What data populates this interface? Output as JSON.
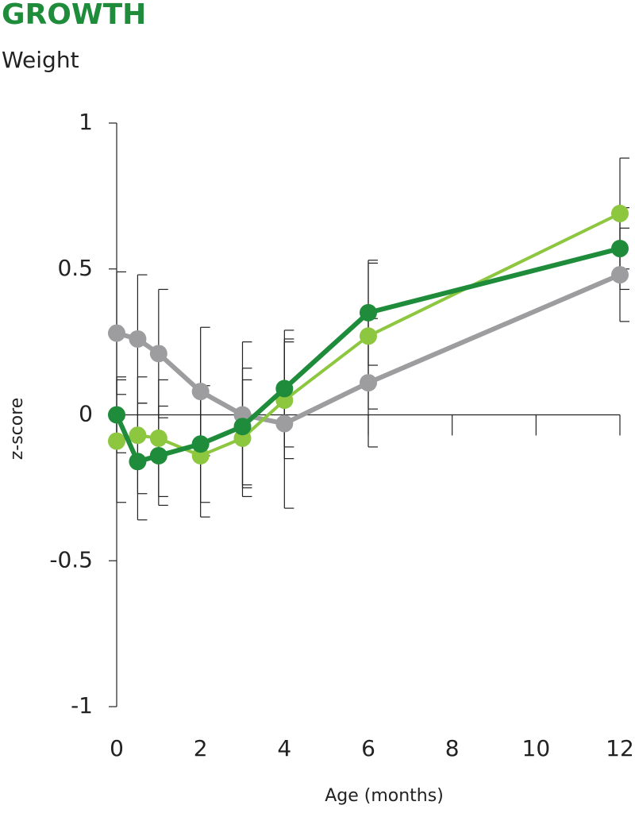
{
  "chart_data": {
    "type": "line",
    "title": "GROWTH",
    "subtitle": "Weight",
    "x_label": "Age (months)",
    "y_label": "z-score",
    "x": [
      0,
      0.5,
      1,
      2,
      3,
      4,
      6,
      12
    ],
    "xlim": [
      0,
      12
    ],
    "xticks": [
      0,
      2,
      4,
      6,
      8,
      10,
      12
    ],
    "ylim": [
      -1,
      1
    ],
    "yticks": [
      1,
      0.5,
      0,
      -0.5,
      -1
    ],
    "series": [
      {
        "color": "#9d9d9f",
        "values": [
          0.28,
          0.26,
          0.21,
          0.08,
          0.0,
          -0.03,
          0.11,
          0.48
        ],
        "errors": [
          0.21,
          0.22,
          0.22,
          0.22,
          0.25,
          0.29,
          0.22,
          0.16
        ]
      },
      {
        "color": "#8dc63f",
        "values": [
          -0.09,
          -0.07,
          -0.08,
          -0.14,
          -0.08,
          0.05,
          0.27,
          0.69
        ],
        "errors": [
          0.21,
          0.2,
          0.2,
          0.21,
          0.2,
          0.2,
          0.25,
          0.19
        ]
      },
      {
        "color": "#1e8c3a",
        "values": [
          0.0,
          -0.16,
          -0.14,
          -0.1,
          -0.04,
          0.09,
          0.35,
          0.57
        ],
        "errors": [
          0.13,
          0.2,
          0.17,
          0.2,
          0.2,
          0.2,
          0.18,
          0.14
        ]
      }
    ]
  }
}
